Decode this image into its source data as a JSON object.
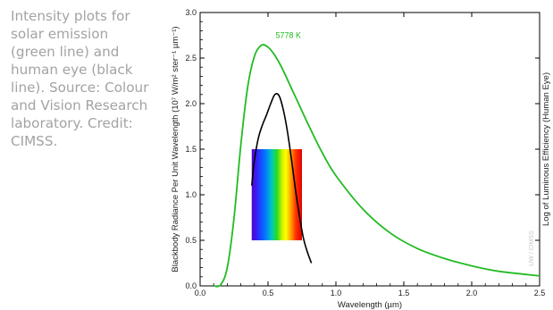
{
  "caption": {
    "text": "Intensity plots for solar emission (green line) and human eye (black line). Source: Colour and Vision Research laboratory. Credit: CIMSS."
  },
  "colors": {
    "solar_curve": "#22bb22",
    "eye_curve": "#000000",
    "caption_text": "#a3a3a3",
    "watermark": "#c8c8c8"
  },
  "chart_data": {
    "type": "line",
    "xlabel": "Wavelength (µm)",
    "ylabel": "Blackbody Radiance Per Unit Wavelength (10⁷ W/m² ster⁻¹ µm⁻¹)",
    "ylabel_right": "Log of Luminous Efficiency (Human Eye)",
    "xlim": [
      0.0,
      2.5
    ],
    "ylim": [
      0.0,
      3.0
    ],
    "xticks": [
      "0.0",
      "0.5",
      "1.0",
      "1.5",
      "2.0",
      "2.5"
    ],
    "yticks": [
      "0.0",
      "0.5",
      "1.0",
      "1.5",
      "2.0",
      "2.5",
      "3.0"
    ],
    "grid": false,
    "annotations": [
      {
        "text": "5778 K",
        "x": 0.65,
        "y": 2.72
      }
    ],
    "watermark": "UW / CIMSS",
    "spectrum_band": {
      "x": [
        0.38,
        0.75
      ],
      "y": [
        0.5,
        1.5
      ]
    },
    "series": [
      {
        "color": "#22bb22",
        "x": [
          0.1,
          0.15,
          0.2,
          0.25,
          0.3,
          0.35,
          0.4,
          0.45,
          0.5,
          0.55,
          0.6,
          0.7,
          0.8,
          0.9,
          1.0,
          1.2,
          1.4,
          1.6,
          1.8,
          2.0,
          2.2,
          2.5
        ],
        "values": [
          0.0,
          0.01,
          0.2,
          0.75,
          1.55,
          2.18,
          2.52,
          2.64,
          2.62,
          2.53,
          2.4,
          2.08,
          1.76,
          1.46,
          1.21,
          0.84,
          0.58,
          0.41,
          0.3,
          0.22,
          0.16,
          0.11
        ]
      },
      {
        "color": "#000000",
        "x": [
          0.38,
          0.4,
          0.43,
          0.46,
          0.49,
          0.52,
          0.55,
          0.58,
          0.61,
          0.64,
          0.67,
          0.7,
          0.73,
          0.76,
          0.79,
          0.82
        ],
        "values": [
          1.1,
          1.38,
          1.63,
          1.77,
          1.88,
          2.0,
          2.1,
          2.09,
          1.95,
          1.72,
          1.42,
          1.08,
          0.78,
          0.53,
          0.37,
          0.25
        ]
      }
    ]
  }
}
